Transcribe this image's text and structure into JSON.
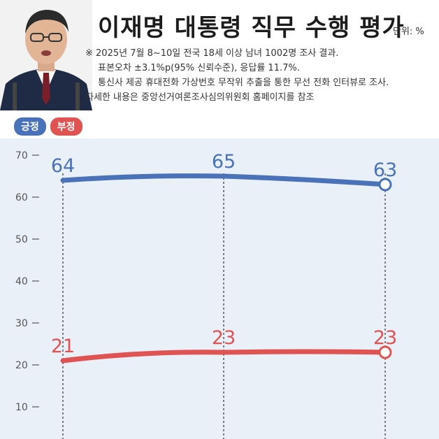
{
  "header": {
    "title": "이재명 대통령 직무 수행 평가",
    "unit": "단위: %"
  },
  "notes": [
    "※ 2025년 7월 8~10일 전국 18세 이상 남녀 1002명 조사 결과.",
    "표본오차 ±3.1%p(95% 신뢰수준), 응답률 11.7%.",
    "통신사 제공 휴대전화 가상번호 무작위 추출을 통한 무선 전화 인터뷰로 조사.",
    "자세한 내용은 중앙선거여론조사심의위원회 홈페이지를 참조"
  ],
  "colors": {
    "positive": "#4a72b8",
    "negative": "#e05353",
    "grid": "#333333",
    "panel": "#eaf0f8"
  },
  "chart_data": {
    "type": "line",
    "title": "이재명 대통령 직무 수행 평가",
    "x": [
      1,
      2,
      3
    ],
    "ylim": [
      5,
      72
    ],
    "yticks": [
      10,
      20,
      30,
      40,
      50,
      60,
      70
    ],
    "grid": "vertical-dashed",
    "legend": "top-left",
    "series": [
      {
        "name": "긍정",
        "values": [
          64,
          65,
          63
        ],
        "color": "#4a72b8"
      },
      {
        "name": "부정",
        "values": [
          21,
          23,
          23
        ],
        "color": "#e05353"
      }
    ]
  }
}
